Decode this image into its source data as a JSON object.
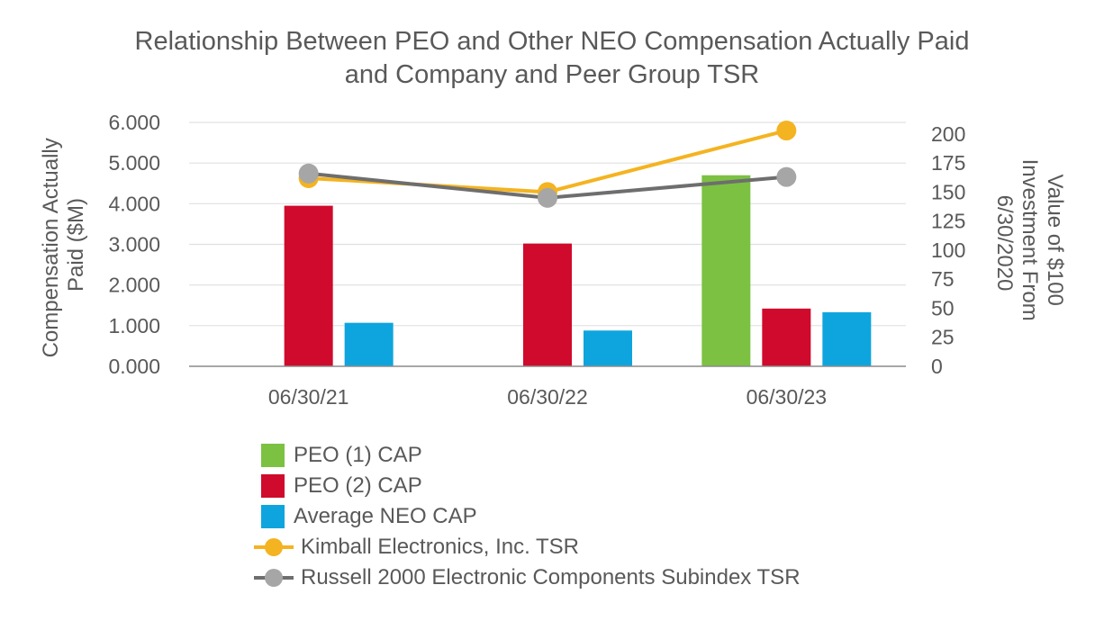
{
  "chart_data": {
    "type": "bar",
    "title": [
      "Relationship Between PEO and Other NEO Compensation Actually Paid",
      "and Company and Peer Group TSR"
    ],
    "categories": [
      "06/30/21",
      "06/30/22",
      "06/30/23"
    ],
    "y_left": {
      "label": [
        "Compensation Actually",
        "Paid ($M)"
      ],
      "ticks": [
        "0.000",
        "1.000",
        "2.000",
        "3.000",
        "4.000",
        "5.000",
        "6.000"
      ],
      "range": [
        0,
        6
      ]
    },
    "y_right": {
      "label": [
        "Value of $100",
        "Investment From",
        "6/30/2020"
      ],
      "ticks": [
        "0",
        "25",
        "50",
        "75",
        "100",
        "125",
        "150",
        "175",
        "200"
      ],
      "range": [
        0,
        210
      ]
    },
    "bar_series": [
      {
        "name": "PEO (1) CAP",
        "color": "#7cc142",
        "values": [
          null,
          null,
          4.7
        ]
      },
      {
        "name": "PEO (2) CAP",
        "color": "#cf0a2c",
        "values": [
          3.95,
          3.02,
          1.42
        ]
      },
      {
        "name": "Average NEO CAP",
        "color": "#0ea5de",
        "values": [
          1.07,
          0.88,
          1.33
        ]
      }
    ],
    "line_series": [
      {
        "name": "Kimball Electronics, Inc. TSR",
        "color": "#f4b320",
        "values": [
          162,
          150,
          203
        ]
      },
      {
        "name": "Russell 2000 Electronic Components Subindex TSR",
        "color": "#6e6e6e",
        "marker_color": "#a6a6a6",
        "values": [
          166,
          145,
          163
        ]
      }
    ],
    "legend": [
      "PEO (1) CAP",
      "PEO (2) CAP",
      "Average NEO CAP",
      "Kimball Electronics, Inc. TSR",
      "Russell 2000 Electronic Components Subindex TSR"
    ],
    "gridlines": true,
    "legend_position": "bottom"
  }
}
